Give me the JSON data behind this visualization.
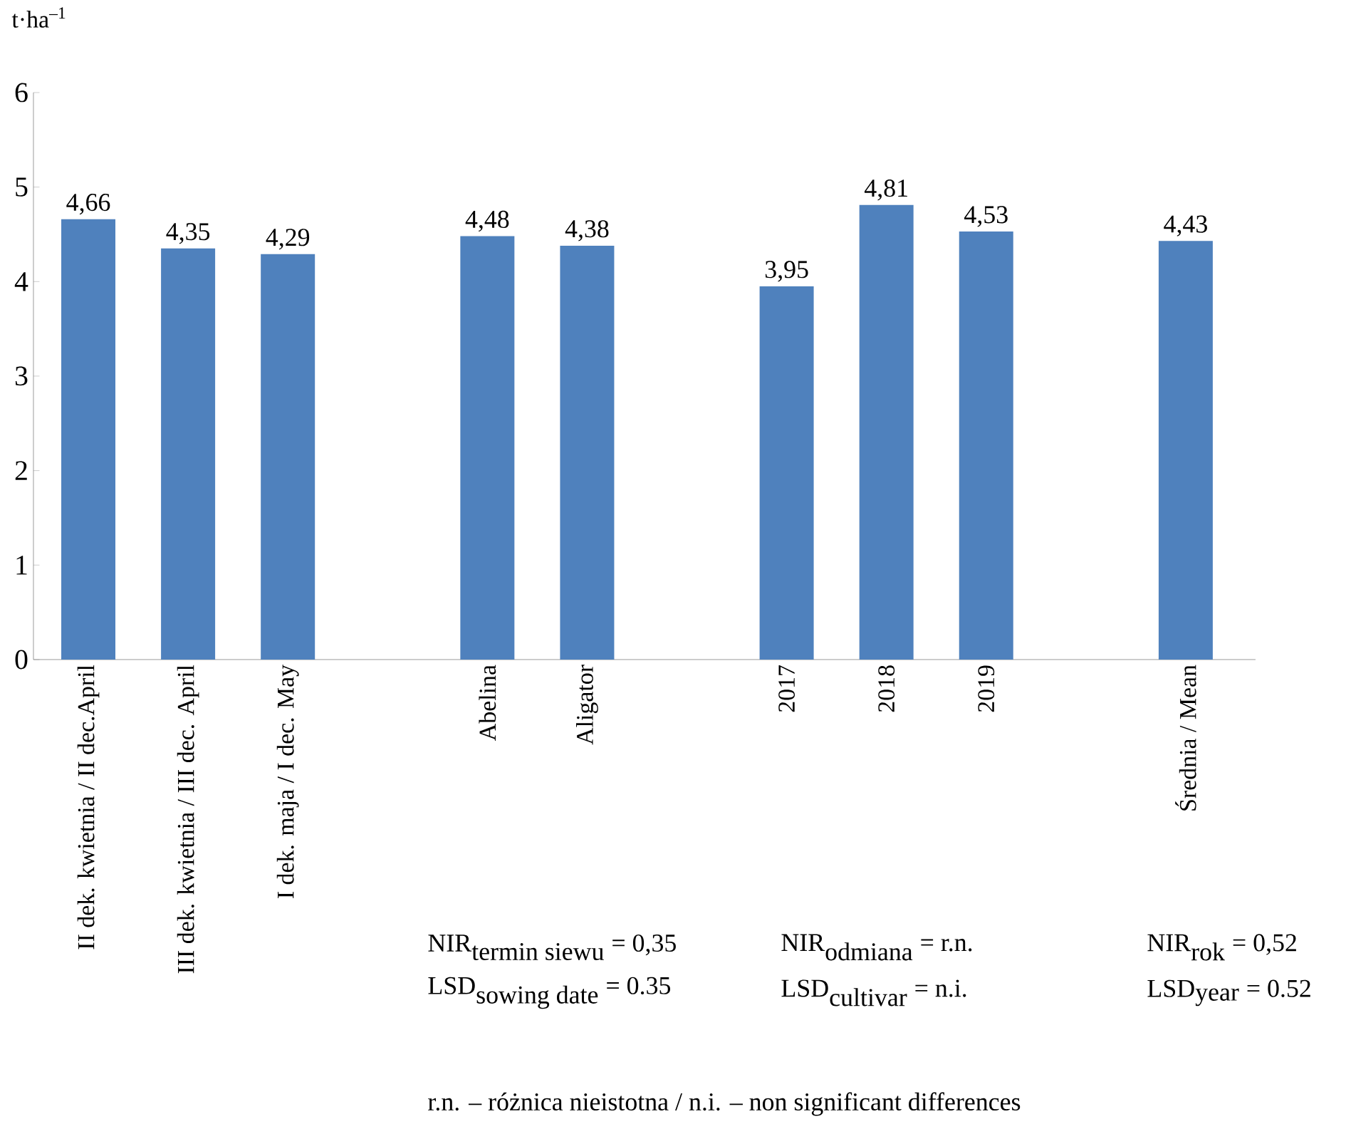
{
  "chart_data": {
    "type": "bar",
    "ylabel": "t·ha$^{–1}$",
    "categories": [
      "II dek. kwietnia / II dec.April",
      "III dek. kwietnia / III dec. April",
      "I dek. maja / I dec. May",
      null,
      "Abelina",
      "Aligator",
      null,
      "2017",
      "2018",
      "2019",
      null,
      "Średnia / Mean"
    ],
    "values": [
      4.66,
      4.35,
      4.29,
      null,
      4.48,
      4.38,
      null,
      3.95,
      4.81,
      4.53,
      null,
      4.43
    ],
    "value_labels": [
      "4,66",
      "4,35",
      "4,29",
      null,
      "4,48",
      "4,38",
      null,
      "3,95",
      "4,81",
      "4,53",
      null,
      "4,43"
    ],
    "color": "#4f81bd",
    "ylim": [
      0,
      6
    ],
    "yticks": [
      0,
      1,
      2,
      3,
      4,
      5,
      6
    ],
    "annotations": [
      "\\textrm{NIR}_{\\textrm{termin siewu}}\\textrm{ =  0,35}",
      "\\textrm{LSD}_{\\textrm{sowing date}}\\textrm{ = 0.35}",
      "\\textrm{NIR}_{\\textrm{odmiana}}\\textrm{ = r.n.}",
      "\\textrm{LSD}_{\\textrm{cultivar}}\\textrm{ = n.i.}",
      "\\textrm{NIR}_{\\textrm{rok}}\\textrm{ = 0,52}",
      "\\textrm{LSD}_{\\textrm{year}}\\textrm{ = 0.52}",
      "r.n. – różnica nieistotna / n.i. – non significant differences"
    ]
  }
}
